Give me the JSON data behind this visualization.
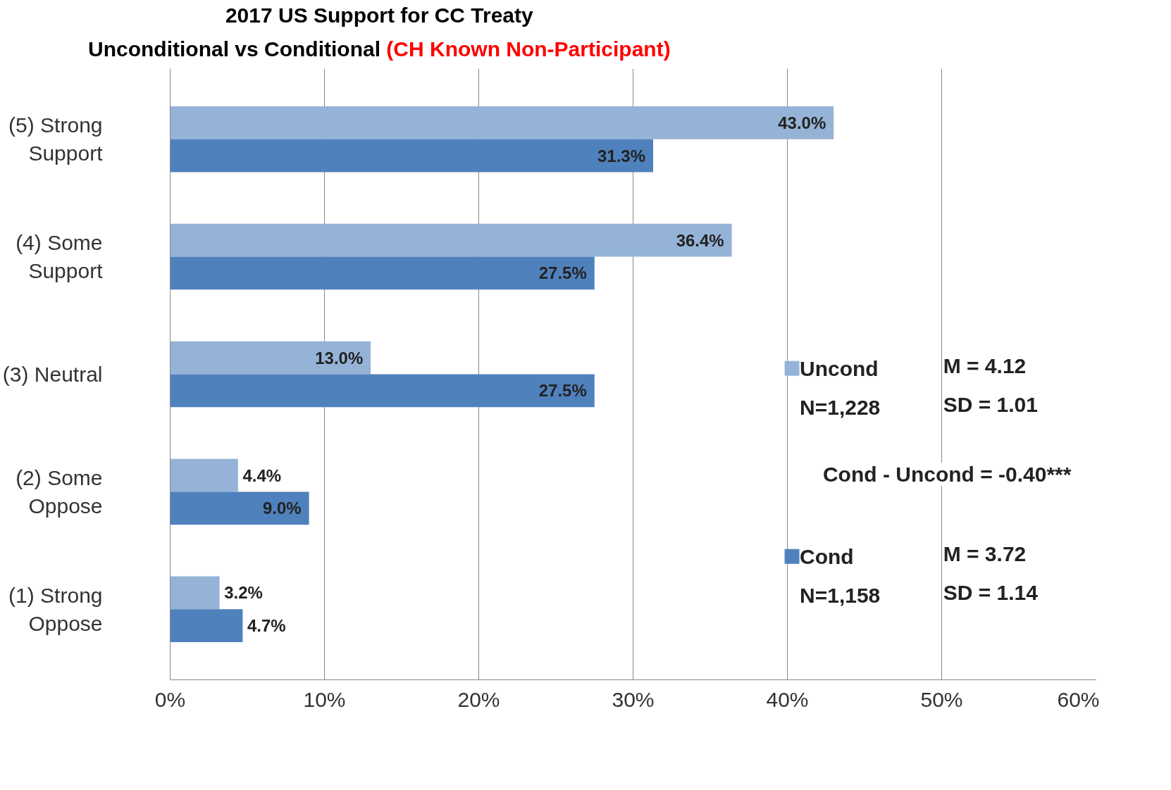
{
  "chart_data": {
    "type": "bar",
    "orientation": "horizontal",
    "title": "2017 US Support  for CC Treaty",
    "subtitle": "Unconditional  vs Conditional  (CH Known Non-Participant)",
    "categories": [
      "(5) Strong\nSupport",
      "(4) Some\nSupport",
      "(3) Neutral",
      "(2) Some\nOppose",
      "(1) Strong\nOppose"
    ],
    "series": [
      {
        "name": "Uncond",
        "color": "#95b3d7",
        "values": [
          43.0,
          36.4,
          13.0,
          4.4,
          3.2
        ],
        "value_labels": [
          "43.0%",
          "36.4%",
          "13.0%",
          "4.4%",
          "3.2%"
        ]
      },
      {
        "name": "Cond",
        "color": "#4f81bd",
        "values": [
          31.3,
          27.5,
          27.5,
          9.0,
          4.7
        ],
        "value_labels": [
          "31.3%",
          "27.5%",
          "27.5%",
          "9.0%",
          "4.7%"
        ]
      }
    ],
    "xlim": [
      0,
      60
    ],
    "xticks": [
      {
        "value": 0,
        "label": "0%"
      },
      {
        "value": 10,
        "label": "10%"
      },
      {
        "value": 20,
        "label": "20%"
      },
      {
        "value": 30,
        "label": "30%"
      },
      {
        "value": 40,
        "label": "40%"
      },
      {
        "value": 50,
        "label": "50%"
      },
      {
        "value": 60,
        "label": "60%"
      }
    ],
    "grid": "x",
    "legend": "right",
    "annotations": [
      "N=1,228",
      "M = 4.12",
      "SD = 1.01",
      "Cond - Uncond = -0.40***",
      "N=1,158",
      "M = 3.72",
      "SD = 1.14"
    ]
  }
}
